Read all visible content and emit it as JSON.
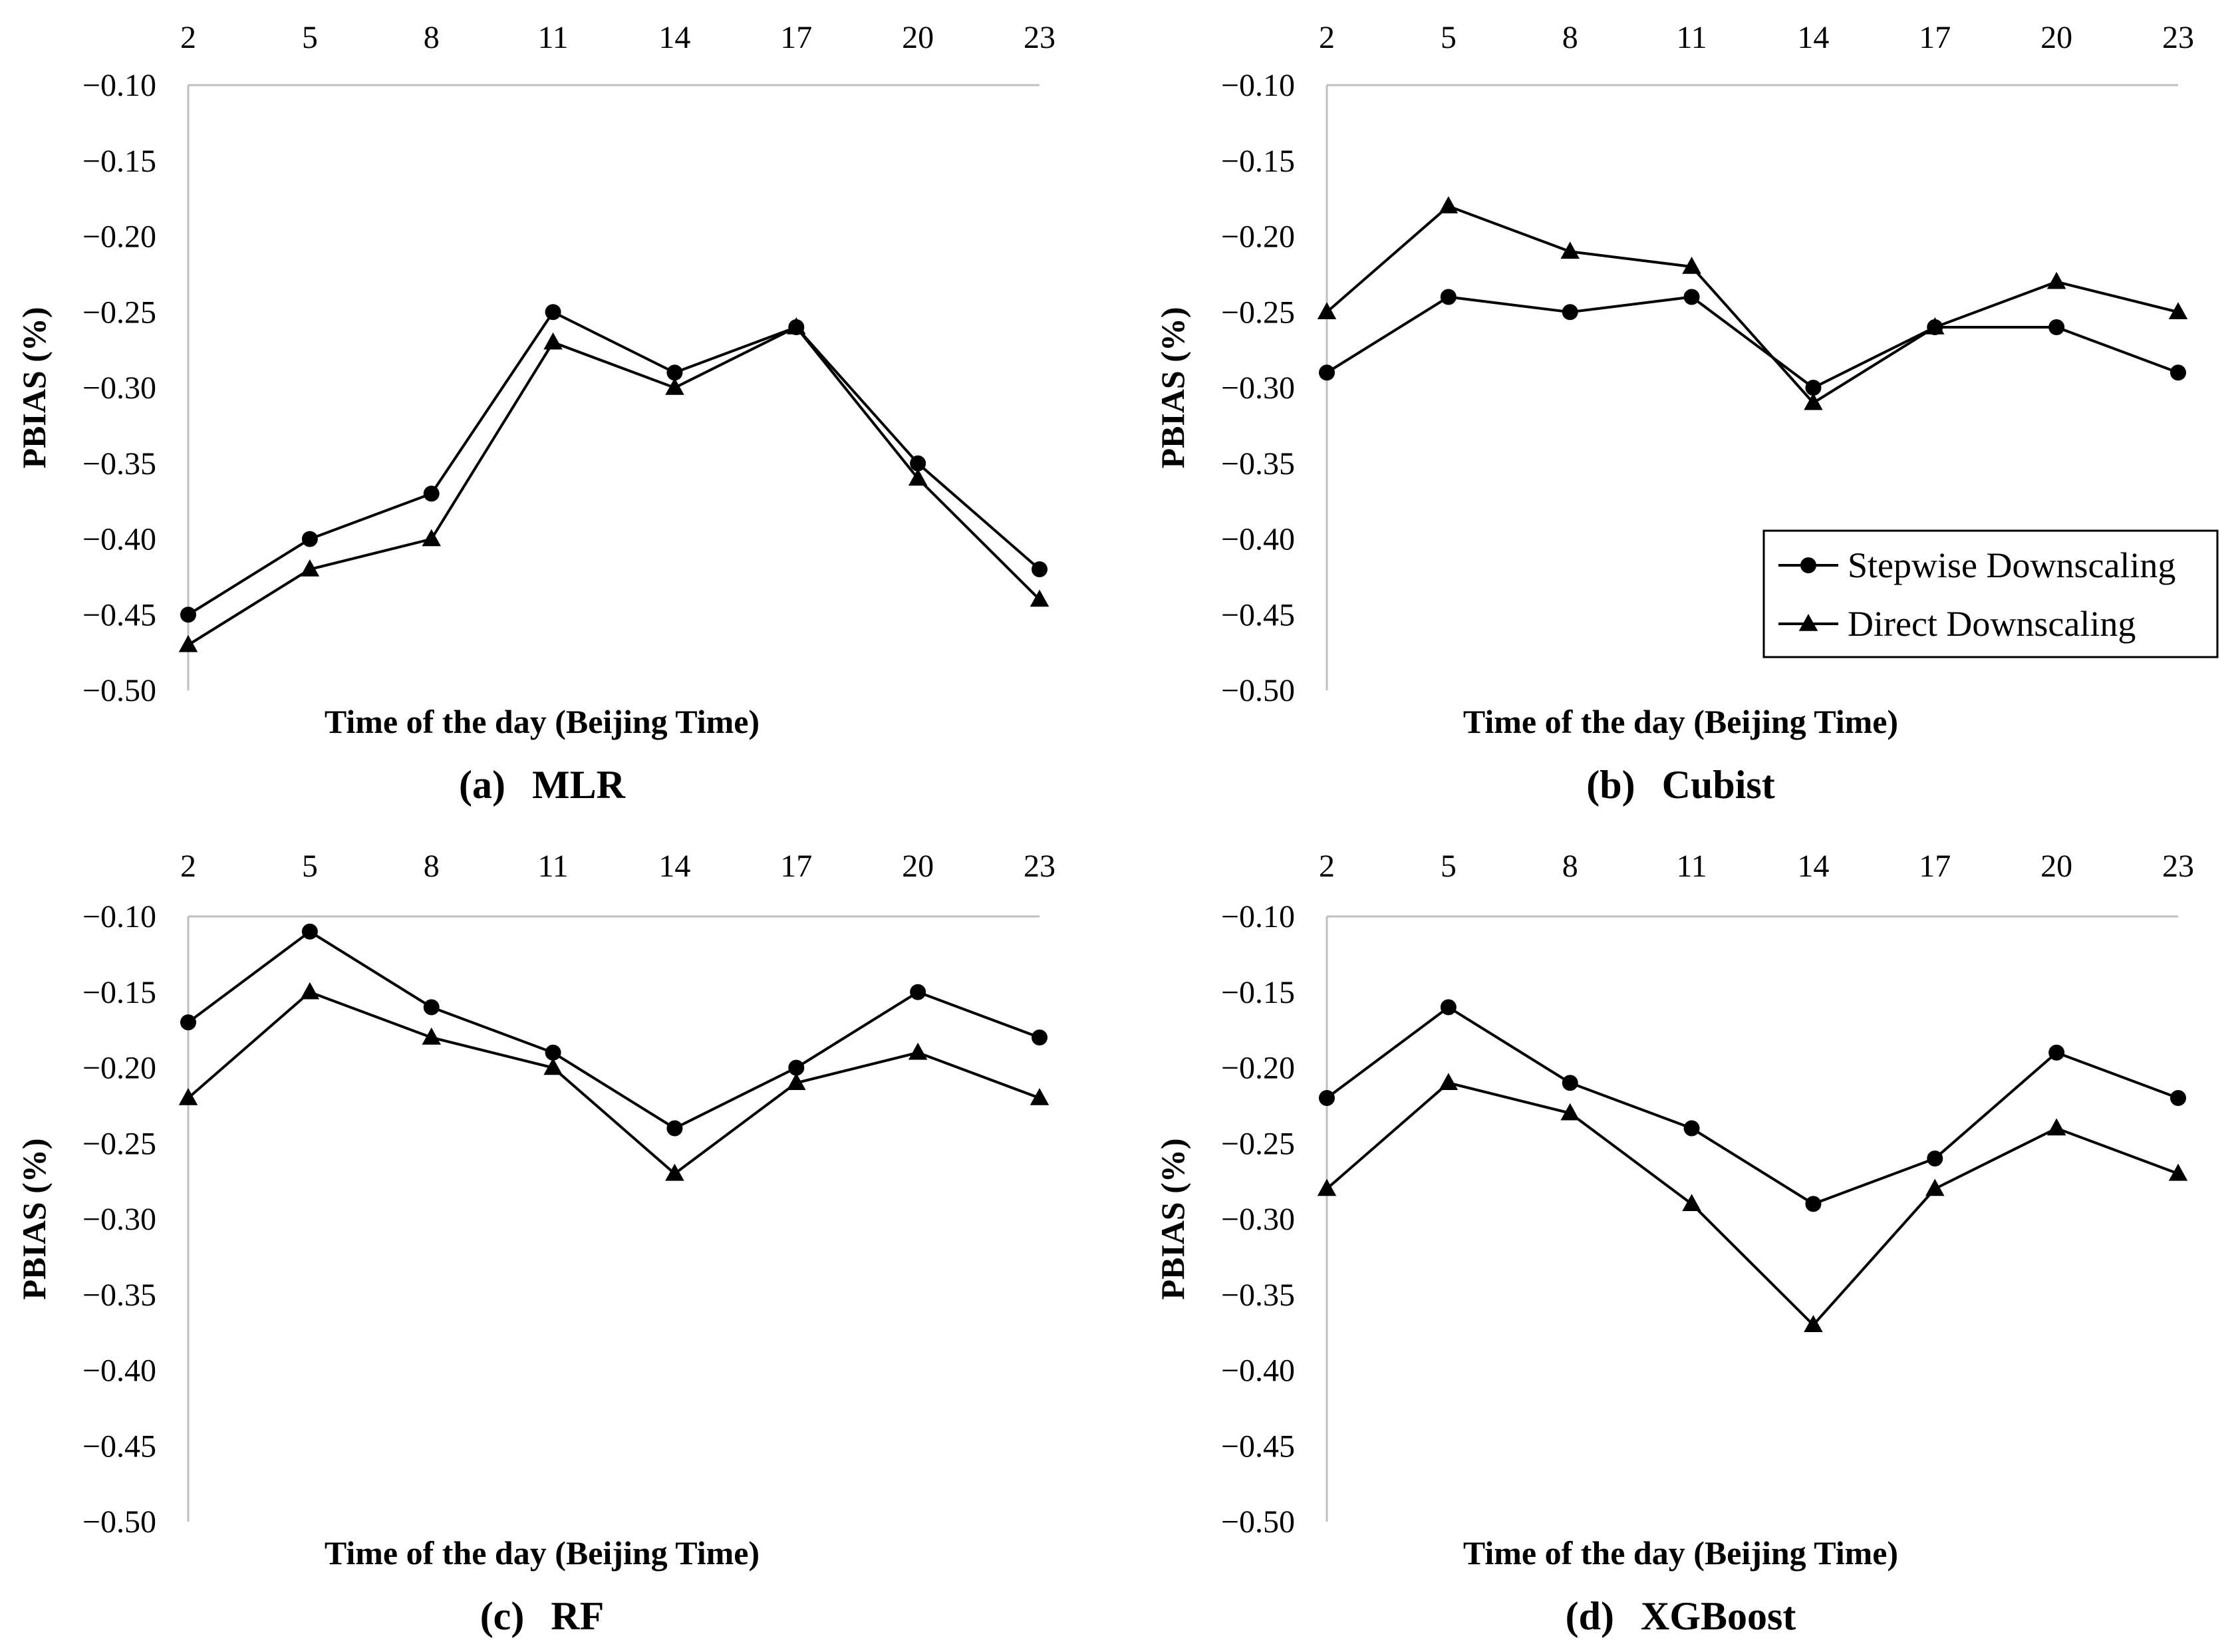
{
  "chart_data": [
    {
      "type": "line",
      "panel": "(a)",
      "model": "MLR",
      "xlabel": "Time of the day (Beijing Time)",
      "ylabel": "PBIAS (%)",
      "categories": [
        "2",
        "5",
        "8",
        "11",
        "14",
        "17",
        "20",
        "23"
      ],
      "y_ticks": [
        "−0.10",
        "−0.15",
        "−0.20",
        "−0.25",
        "−0.30",
        "−0.35",
        "−0.40",
        "−0.45",
        "−0.50"
      ],
      "ylim": [
        -0.5,
        -0.1
      ],
      "series": [
        {
          "name": "Stepwise Downscaling",
          "marker": "circle",
          "values": [
            -0.45,
            -0.4,
            -0.37,
            -0.25,
            -0.29,
            -0.26,
            -0.35,
            -0.42
          ]
        },
        {
          "name": "Direct Downscaling",
          "marker": "triangle",
          "values": [
            -0.47,
            -0.42,
            -0.4,
            -0.27,
            -0.3,
            -0.26,
            -0.36,
            -0.44
          ]
        }
      ]
    },
    {
      "type": "line",
      "panel": "(b)",
      "model": "Cubist",
      "xlabel": "Time of the day (Beijing Time)",
      "ylabel": "PBIAS (%)",
      "categories": [
        "2",
        "5",
        "8",
        "11",
        "14",
        "17",
        "20",
        "23"
      ],
      "y_ticks": [
        "−0.10",
        "−0.15",
        "−0.20",
        "−0.25",
        "−0.30",
        "−0.35",
        "−0.40",
        "−0.45",
        "−0.50"
      ],
      "ylim": [
        -0.5,
        -0.1
      ],
      "legend": "bottom-right",
      "series": [
        {
          "name": "Stepwise Downscaling",
          "marker": "circle",
          "values": [
            -0.29,
            -0.24,
            -0.25,
            -0.24,
            -0.3,
            -0.26,
            -0.26,
            -0.29
          ]
        },
        {
          "name": "Direct Downscaling",
          "marker": "triangle",
          "values": [
            -0.25,
            -0.18,
            -0.21,
            -0.22,
            -0.31,
            -0.26,
            -0.23,
            -0.25
          ]
        }
      ]
    },
    {
      "type": "line",
      "panel": "(c)",
      "model": "RF",
      "xlabel": "Time of the day (Beijing Time)",
      "ylabel": "PBIAS (%)",
      "categories": [
        "2",
        "5",
        "8",
        "11",
        "14",
        "17",
        "20",
        "23"
      ],
      "y_ticks": [
        "−0.10",
        "−0.15",
        "−0.20",
        "−0.25",
        "−0.30",
        "−0.35",
        "−0.40",
        "−0.45",
        "−0.50"
      ],
      "ylim": [
        -0.5,
        -0.1
      ],
      "series": [
        {
          "name": "Stepwise Downscaling",
          "marker": "circle",
          "values": [
            -0.17,
            -0.11,
            -0.16,
            -0.19,
            -0.24,
            -0.2,
            -0.15,
            -0.18
          ]
        },
        {
          "name": "Direct Downscaling",
          "marker": "triangle",
          "values": [
            -0.22,
            -0.15,
            -0.18,
            -0.2,
            -0.27,
            -0.21,
            -0.19,
            -0.22
          ]
        }
      ]
    },
    {
      "type": "line",
      "panel": "(d)",
      "model": "XGBoost",
      "xlabel": "Time of the day (Beijing Time)",
      "ylabel": "PBIAS (%)",
      "categories": [
        "2",
        "5",
        "8",
        "11",
        "14",
        "17",
        "20",
        "23"
      ],
      "y_ticks": [
        "−0.10",
        "−0.15",
        "−0.20",
        "−0.25",
        "−0.30",
        "−0.35",
        "−0.40",
        "−0.45",
        "−0.50"
      ],
      "ylim": [
        -0.5,
        -0.1
      ],
      "series": [
        {
          "name": "Stepwise Downscaling",
          "marker": "circle",
          "values": [
            -0.22,
            -0.16,
            -0.21,
            -0.24,
            -0.29,
            -0.26,
            -0.19,
            -0.22
          ]
        },
        {
          "name": "Direct Downscaling",
          "marker": "triangle",
          "values": [
            -0.28,
            -0.21,
            -0.23,
            -0.29,
            -0.37,
            -0.28,
            -0.24,
            -0.27
          ]
        }
      ]
    }
  ],
  "legend": {
    "items": [
      "Stepwise Downscaling",
      "Direct Downscaling"
    ]
  }
}
